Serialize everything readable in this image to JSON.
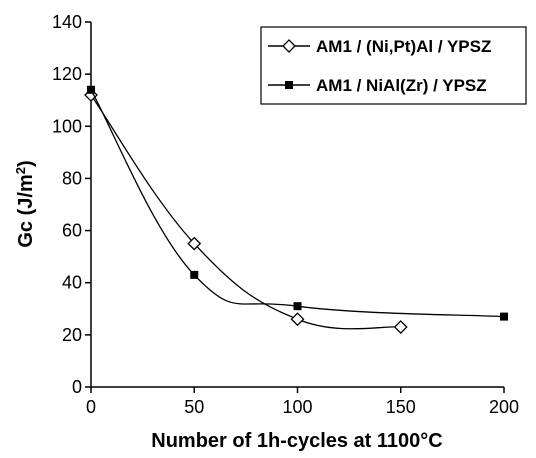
{
  "chart_data": {
    "type": "line",
    "xlabel": "Number of 1h-cycles at 1100°C",
    "ylabel_main": "Gc",
    "ylabel_units": " (J/m",
    "ylabel_sup": "2",
    "ylabel_close": ")",
    "xlim": [
      0,
      200
    ],
    "ylim": [
      0,
      140
    ],
    "x_ticks": [
      "0",
      "50",
      "100",
      "150",
      "200"
    ],
    "y_ticks": [
      "0",
      "20",
      "40",
      "60",
      "80",
      "100",
      "120",
      "140"
    ],
    "grid": false,
    "legend_position": "top-right",
    "series": [
      {
        "name": "AM1 / (Ni,Pt)Al / YPSZ",
        "marker": "diamond-open",
        "color": "#000000",
        "x": [
          0,
          50,
          100,
          150
        ],
        "y": [
          112,
          55,
          26,
          23
        ]
      },
      {
        "name": "AM1 / NiAl(Zr) / YPSZ",
        "marker": "square-filled",
        "color": "#000000",
        "x": [
          0,
          50,
          100,
          200
        ],
        "y": [
          114,
          43,
          31,
          27
        ]
      }
    ]
  }
}
